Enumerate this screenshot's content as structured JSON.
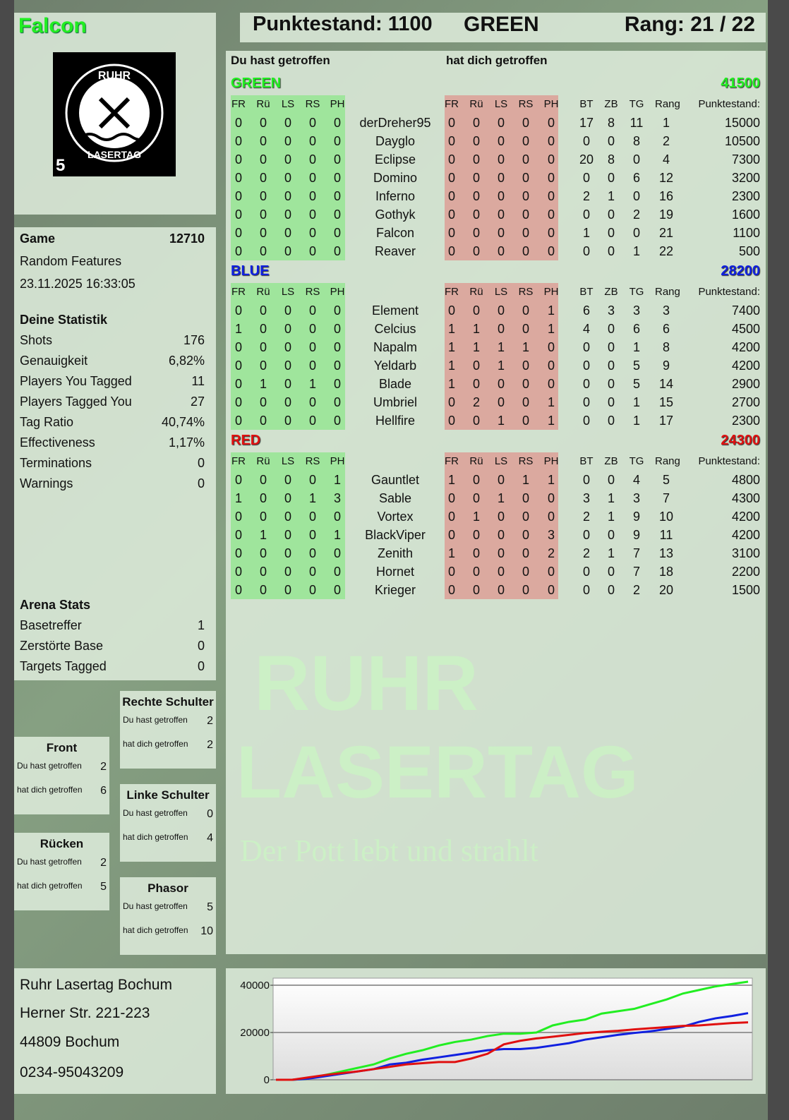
{
  "player": {
    "name": "Falcon",
    "logo_text": "RUHR LASERTAG",
    "logo_badge": "5"
  },
  "header": {
    "score": "Punktestand: 1100",
    "team": "GREEN",
    "rank": "Rang: 21 / 22"
  },
  "game": {
    "label": "Game",
    "id": "12710",
    "mode": "Random Features",
    "datetime": "23.11.2025 16:33:05"
  },
  "stats": {
    "title": "Deine Statistik",
    "items": [
      {
        "label": "Shots",
        "value": "176"
      },
      {
        "label": "Genauigkeit",
        "value": "6,82%"
      },
      {
        "label": "Players You Tagged",
        "value": "11"
      },
      {
        "label": "Players Tagged You",
        "value": "27"
      },
      {
        "label": "Tag Ratio",
        "value": "40,74%"
      },
      {
        "label": "Effectiveness",
        "value": "1,17%"
      },
      {
        "label": "Terminations",
        "value": "0"
      },
      {
        "label": "Warnings",
        "value": "0"
      }
    ]
  },
  "arena": {
    "title": "Arena Stats",
    "items": [
      {
        "label": "Basetreffer",
        "value": "1"
      },
      {
        "label": "Zerstörte Base",
        "value": "0"
      },
      {
        "label": "Targets Tagged",
        "value": "0"
      }
    ]
  },
  "zones": [
    {
      "title": "Rechte Schulter",
      "you_hit_label": "Du hast getroffen",
      "you_hit": "2",
      "hit_you_label": "hat dich getroffen",
      "hit_you": "2"
    },
    {
      "title": "Front",
      "you_hit_label": "Du hast getroffen",
      "you_hit": "2",
      "hit_you_label": "hat dich getroffen",
      "hit_you": "6"
    },
    {
      "title": "Linke Schulter",
      "you_hit_label": "Du hast getroffen",
      "you_hit": "0",
      "hit_you_label": "hat dich getroffen",
      "hit_you": "4"
    },
    {
      "title": "Rücken",
      "you_hit_label": "Du hast getroffen",
      "you_hit": "2",
      "hit_you_label": "hat dich getroffen",
      "hit_you": "5"
    },
    {
      "title": "Phasor",
      "you_hit_label": "Du hast getroffen",
      "you_hit": "5",
      "hit_you_label": "hat dich getroffen",
      "hit_you": "10"
    }
  ],
  "venue": {
    "name": "Ruhr Lasertag Bochum",
    "street": "Herner Str. 221-223",
    "city": "44809 Bochum",
    "phone": "0234-95043209"
  },
  "watermark": {
    "line1": "RUHR",
    "line2": "LASERTAG",
    "slogan": "Der Pott lebt und strahlt"
  },
  "table": {
    "you_hit": "Du hast getroffen",
    "hit_you": "hat dich getroffen",
    "columns": [
      "FR",
      "Rü",
      "LS",
      "RS",
      "PH",
      "FR",
      "Rü",
      "LS",
      "RS",
      "PH",
      "BT",
      "ZB",
      "TG",
      "Rang",
      "Punktestand:"
    ],
    "teams": [
      {
        "name": "GREEN",
        "score": "41500",
        "color": "#22ee22",
        "players": [
          [
            "0",
            "0",
            "0",
            "0",
            "0",
            "derDreher95",
            "0",
            "0",
            "0",
            "0",
            "0",
            "17",
            "8",
            "11",
            "1",
            "15000"
          ],
          [
            "0",
            "0",
            "0",
            "0",
            "0",
            "Dayglo",
            "0",
            "0",
            "0",
            "0",
            "0",
            "0",
            "0",
            "8",
            "2",
            "10500"
          ],
          [
            "0",
            "0",
            "0",
            "0",
            "0",
            "Eclipse",
            "0",
            "0",
            "0",
            "0",
            "0",
            "20",
            "8",
            "0",
            "4",
            "7300"
          ],
          [
            "0",
            "0",
            "0",
            "0",
            "0",
            "Domino",
            "0",
            "0",
            "0",
            "0",
            "0",
            "0",
            "0",
            "6",
            "12",
            "3200"
          ],
          [
            "0",
            "0",
            "0",
            "0",
            "0",
            "Inferno",
            "0",
            "0",
            "0",
            "0",
            "0",
            "2",
            "1",
            "0",
            "16",
            "2300"
          ],
          [
            "0",
            "0",
            "0",
            "0",
            "0",
            "Gothyk",
            "0",
            "0",
            "0",
            "0",
            "0",
            "0",
            "0",
            "2",
            "19",
            "1600"
          ],
          [
            "0",
            "0",
            "0",
            "0",
            "0",
            "Falcon",
            "0",
            "0",
            "0",
            "0",
            "0",
            "1",
            "0",
            "0",
            "21",
            "1100"
          ],
          [
            "0",
            "0",
            "0",
            "0",
            "0",
            "Reaver",
            "0",
            "0",
            "0",
            "0",
            "0",
            "0",
            "0",
            "1",
            "22",
            "500"
          ]
        ]
      },
      {
        "name": "BLUE",
        "score": "28200",
        "color": "#1020e0",
        "players": [
          [
            "0",
            "0",
            "0",
            "0",
            "0",
            "Element",
            "0",
            "0",
            "0",
            "0",
            "1",
            "6",
            "3",
            "3",
            "3",
            "7400"
          ],
          [
            "1",
            "0",
            "0",
            "0",
            "0",
            "Celcius",
            "1",
            "1",
            "0",
            "0",
            "1",
            "4",
            "0",
            "6",
            "6",
            "4500"
          ],
          [
            "0",
            "0",
            "0",
            "0",
            "0",
            "Napalm",
            "1",
            "1",
            "1",
            "1",
            "0",
            "0",
            "0",
            "1",
            "8",
            "4200"
          ],
          [
            "0",
            "0",
            "0",
            "0",
            "0",
            "Yeldarb",
            "1",
            "0",
            "1",
            "0",
            "0",
            "0",
            "0",
            "5",
            "9",
            "4200"
          ],
          [
            "0",
            "1",
            "0",
            "1",
            "0",
            "Blade",
            "1",
            "0",
            "0",
            "0",
            "0",
            "0",
            "0",
            "5",
            "14",
            "2900"
          ],
          [
            "0",
            "0",
            "0",
            "0",
            "0",
            "Umbriel",
            "0",
            "2",
            "0",
            "0",
            "1",
            "0",
            "0",
            "1",
            "15",
            "2700"
          ],
          [
            "0",
            "0",
            "0",
            "0",
            "0",
            "Hellfire",
            "0",
            "0",
            "1",
            "0",
            "1",
            "0",
            "0",
            "1",
            "17",
            "2300"
          ]
        ]
      },
      {
        "name": "RED",
        "score": "24300",
        "color": "#e01010",
        "players": [
          [
            "0",
            "0",
            "0",
            "0",
            "1",
            "Gauntlet",
            "1",
            "0",
            "0",
            "1",
            "1",
            "0",
            "0",
            "4",
            "5",
            "4800"
          ],
          [
            "1",
            "0",
            "0",
            "1",
            "3",
            "Sable",
            "0",
            "0",
            "1",
            "0",
            "0",
            "3",
            "1",
            "3",
            "7",
            "4300"
          ],
          [
            "0",
            "0",
            "0",
            "0",
            "0",
            "Vortex",
            "0",
            "1",
            "0",
            "0",
            "0",
            "2",
            "1",
            "9",
            "10",
            "4200"
          ],
          [
            "0",
            "1",
            "0",
            "0",
            "1",
            "BlackViper",
            "0",
            "0",
            "0",
            "0",
            "3",
            "0",
            "0",
            "9",
            "11",
            "4200"
          ],
          [
            "0",
            "0",
            "0",
            "0",
            "0",
            "Zenith",
            "1",
            "0",
            "0",
            "0",
            "2",
            "2",
            "1",
            "7",
            "13",
            "3100"
          ],
          [
            "0",
            "0",
            "0",
            "0",
            "0",
            "Hornet",
            "0",
            "0",
            "0",
            "0",
            "0",
            "0",
            "0",
            "7",
            "18",
            "2200"
          ],
          [
            "0",
            "0",
            "0",
            "0",
            "0",
            "Krieger",
            "0",
            "0",
            "0",
            "0",
            "0",
            "0",
            "0",
            "2",
            "20",
            "1500"
          ]
        ]
      }
    ]
  },
  "chart_data": {
    "type": "line",
    "ylim": [
      0,
      43000
    ],
    "yticks": [
      "0",
      "20000",
      "40000"
    ],
    "grid": true,
    "series": [
      {
        "color": "#22ee22",
        "values": [
          0,
          0,
          500,
          2000,
          3500,
          5000,
          6500,
          9000,
          11000,
          12500,
          14500,
          16000,
          17000,
          18500,
          19500,
          19500,
          20000,
          23000,
          24500,
          25500,
          28000,
          29000,
          30000,
          32000,
          34000,
          36500,
          38000,
          39500,
          40500,
          41500
        ]
      },
      {
        "color": "#1020e0",
        "values": [
          0,
          0,
          500,
          1500,
          2500,
          3500,
          4500,
          6500,
          7200,
          8500,
          9500,
          10500,
          11500,
          12500,
          13000,
          13000,
          13500,
          14500,
          15500,
          17000,
          18000,
          19000,
          19800,
          20500,
          21500,
          22500,
          24500,
          26000,
          27000,
          28200
        ]
      },
      {
        "color": "#e01010",
        "values": [
          0,
          0,
          1000,
          2000,
          2800,
          3500,
          4500,
          5500,
          6500,
          7000,
          7500,
          7500,
          9000,
          11000,
          15000,
          16500,
          17500,
          18200,
          19000,
          19800,
          20300,
          20700,
          21300,
          21800,
          22300,
          22800,
          23000,
          23500,
          24000,
          24300
        ]
      }
    ]
  }
}
